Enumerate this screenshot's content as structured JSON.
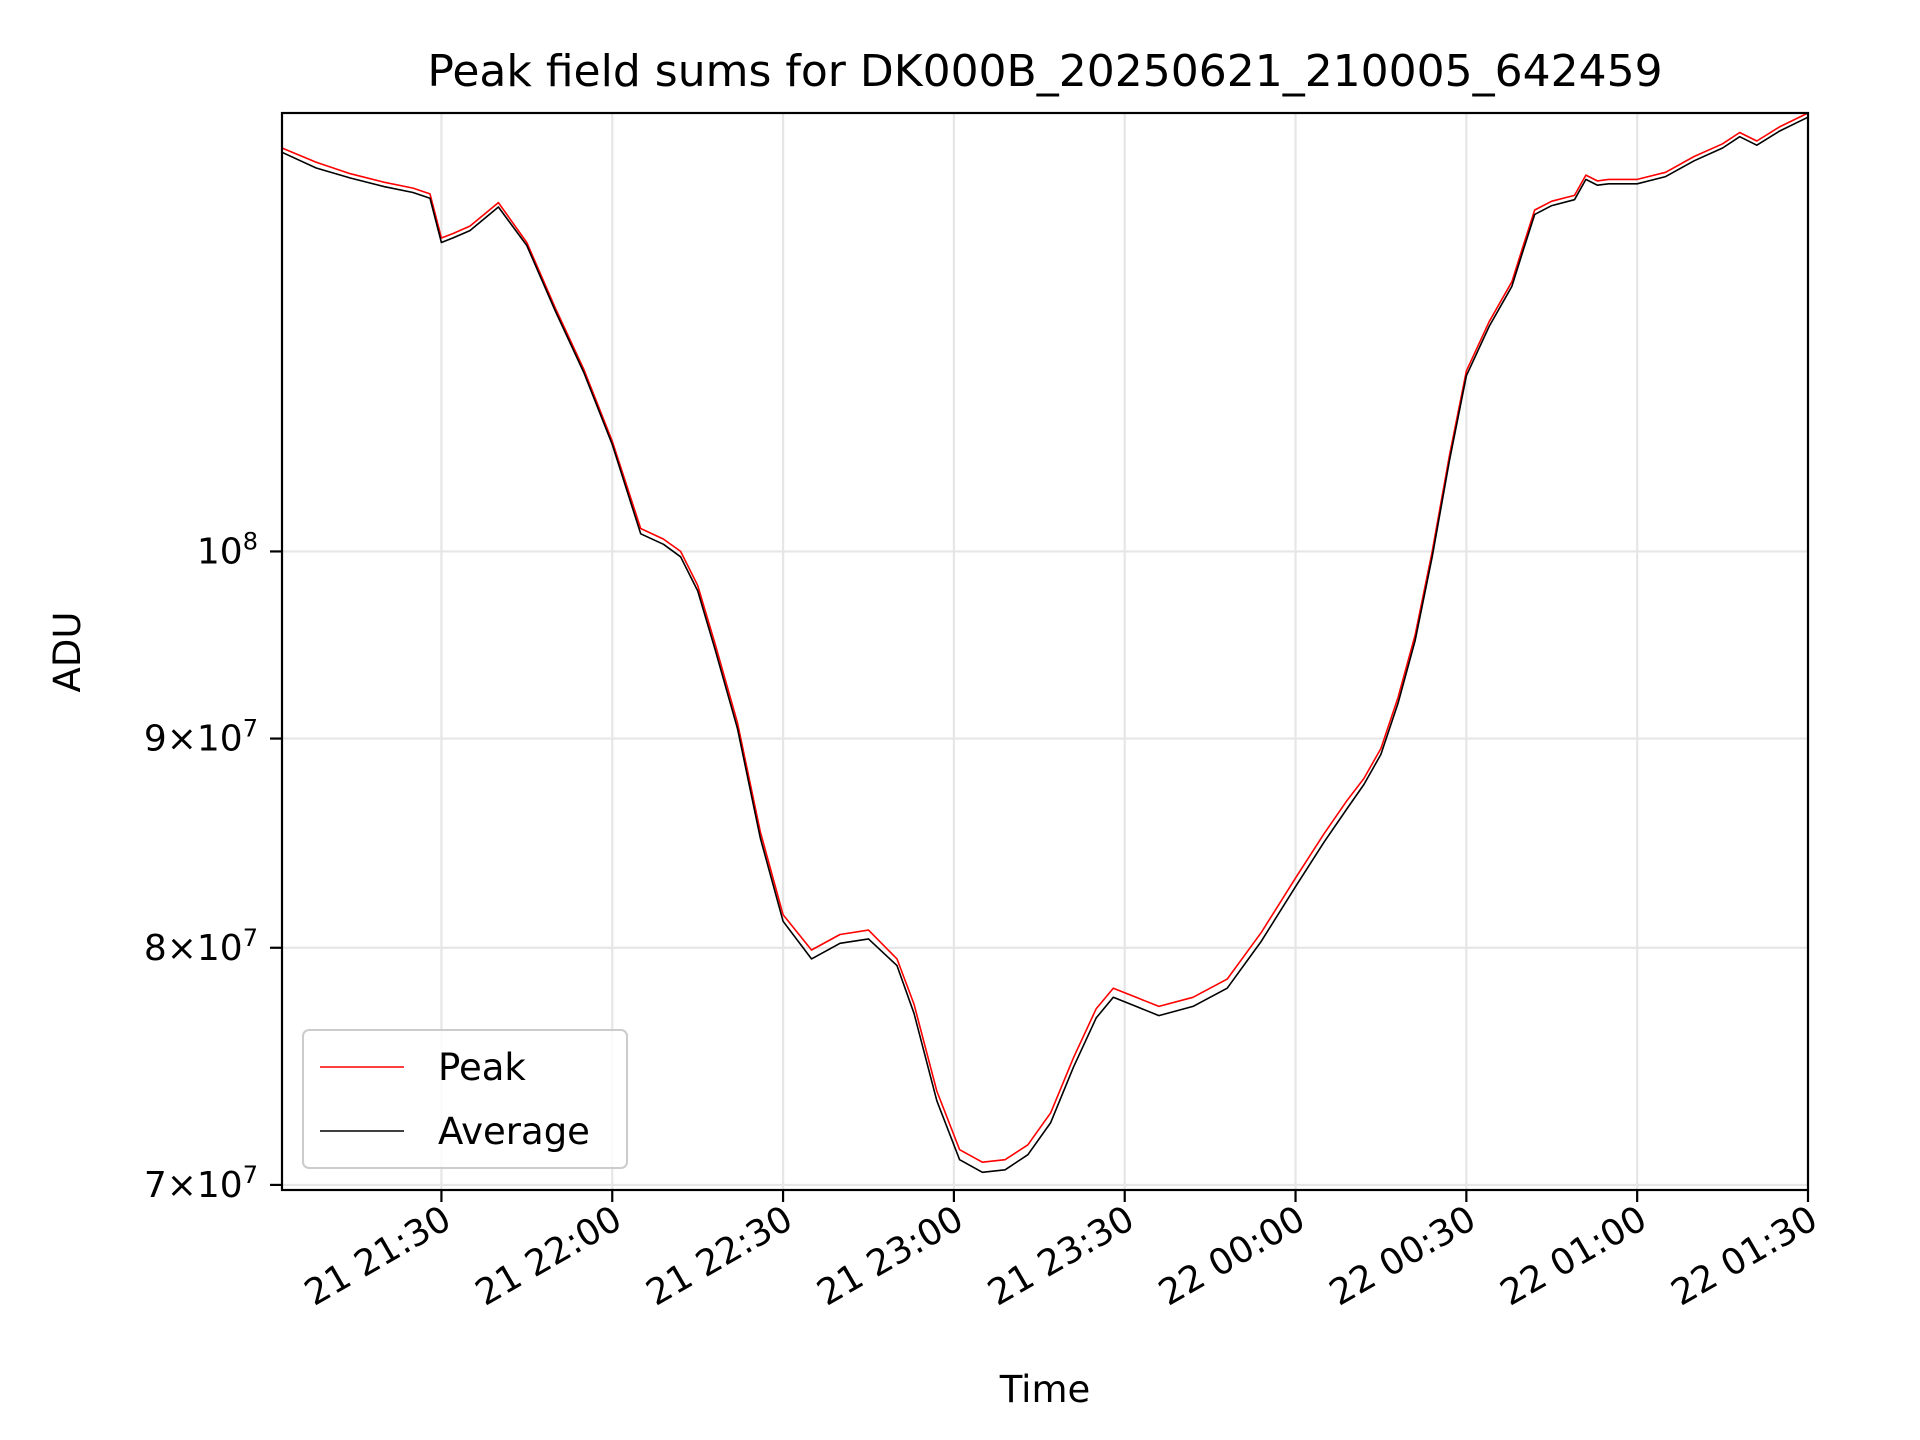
{
  "chart_data": {
    "type": "line",
    "title": "Peak field sums for DK000B_20250621_210005_642459",
    "xlabel": "Time",
    "ylabel": "ADU",
    "yscale": "log",
    "grid": true,
    "legend_position": "lower-left",
    "xlim": [
      "2025-06-21 21:02",
      "2025-06-22 01:30"
    ],
    "ylim": [
      69800000,
      128000000
    ],
    "x_ticks": [
      {
        "value": "2025-06-21 21:30",
        "label": "21 21:30"
      },
      {
        "value": "2025-06-21 22:00",
        "label": "21 22:00"
      },
      {
        "value": "2025-06-21 22:30",
        "label": "21 22:30"
      },
      {
        "value": "2025-06-21 23:00",
        "label": "21 23:00"
      },
      {
        "value": "2025-06-21 23:30",
        "label": "21 23:30"
      },
      {
        "value": "2025-06-22 00:00",
        "label": "22 00:00"
      },
      {
        "value": "2025-06-22 00:30",
        "label": "22 00:30"
      },
      {
        "value": "2025-06-22 01:00",
        "label": "22 01:00"
      },
      {
        "value": "2025-06-22 01:30",
        "label": "22 01:30"
      }
    ],
    "y_ticks": [
      {
        "value": 70000000,
        "mantissa": "7",
        "base": "10",
        "exp": "7"
      },
      {
        "value": 80000000,
        "mantissa": "8",
        "base": "10",
        "exp": "7"
      },
      {
        "value": 90000000,
        "mantissa": "9",
        "base": "10",
        "exp": "7"
      },
      {
        "value": 100000000,
        "mantissa": "",
        "base": "10",
        "exp": "8"
      }
    ],
    "x": [
      "2025-06-21 21:02",
      "2025-06-21 21:08",
      "2025-06-21 21:14",
      "2025-06-21 21:20",
      "2025-06-21 21:25",
      "2025-06-21 21:28",
      "2025-06-21 21:30",
      "2025-06-21 21:32",
      "2025-06-21 21:35",
      "2025-06-21 21:40",
      "2025-06-21 21:45",
      "2025-06-21 21:50",
      "2025-06-21 21:55",
      "2025-06-21 22:00",
      "2025-06-21 22:05",
      "2025-06-21 22:09",
      "2025-06-21 22:12",
      "2025-06-21 22:15",
      "2025-06-21 22:18",
      "2025-06-21 22:22",
      "2025-06-21 22:26",
      "2025-06-21 22:30",
      "2025-06-21 22:35",
      "2025-06-21 22:40",
      "2025-06-21 22:45",
      "2025-06-21 22:50",
      "2025-06-21 22:53",
      "2025-06-21 22:57",
      "2025-06-21 23:01",
      "2025-06-21 23:05",
      "2025-06-21 23:09",
      "2025-06-21 23:13",
      "2025-06-21 23:17",
      "2025-06-21 23:21",
      "2025-06-21 23:25",
      "2025-06-21 23:28",
      "2025-06-21 23:32",
      "2025-06-21 23:36",
      "2025-06-21 23:42",
      "2025-06-21 23:48",
      "2025-06-21 23:54",
      "2025-06-22 00:00",
      "2025-06-22 00:05",
      "2025-06-22 00:09",
      "2025-06-22 00:12",
      "2025-06-22 00:15",
      "2025-06-22 00:18",
      "2025-06-22 00:21",
      "2025-06-22 00:24",
      "2025-06-22 00:27",
      "2025-06-22 00:30",
      "2025-06-22 00:34",
      "2025-06-22 00:38",
      "2025-06-22 00:40",
      "2025-06-22 00:42",
      "2025-06-22 00:45",
      "2025-06-22 00:49",
      "2025-06-22 00:51",
      "2025-06-22 00:53",
      "2025-06-22 00:55",
      "2025-06-22 01:00",
      "2025-06-22 01:05",
      "2025-06-22 01:10",
      "2025-06-22 01:15",
      "2025-06-22 01:18",
      "2025-06-22 01:21",
      "2025-06-22 01:25",
      "2025-06-22 01:30"
    ],
    "series": [
      {
        "name": "Peak",
        "color": "#ff0000",
        "values": [
          125500000,
          124500000,
          123700000,
          123100000,
          122700000,
          122300000,
          119300000,
          119600000,
          120100000,
          121700000,
          119000000,
          114700000,
          110800000,
          106400000,
          101300000,
          100700000,
          100000000,
          98100000,
          95000000,
          90800000,
          85400000,
          81500000,
          79900000,
          80600000,
          80800000,
          79500000,
          77500000,
          73800000,
          71400000,
          70900000,
          71000000,
          71600000,
          72900000,
          75200000,
          77300000,
          78200000,
          77800000,
          77400000,
          77800000,
          78600000,
          80700000,
          83200000,
          85300000,
          86900000,
          88000000,
          89500000,
          92100000,
          95400000,
          100000000,
          105500000,
          110700000,
          113800000,
          116400000,
          118800000,
          121200000,
          121800000,
          122200000,
          123600000,
          123200000,
          123300000,
          123300000,
          123800000,
          124900000,
          125800000,
          126600000,
          126000000,
          127000000,
          128000000
        ]
      },
      {
        "name": "Average",
        "color": "#000000",
        "values": [
          125200000,
          124100000,
          123400000,
          122800000,
          122400000,
          122000000,
          119000000,
          119300000,
          119800000,
          121400000,
          118800000,
          114500000,
          110600000,
          106200000,
          101000000,
          100400000,
          99700000,
          97800000,
          94700000,
          90500000,
          85100000,
          81200000,
          79500000,
          80200000,
          80400000,
          79200000,
          77100000,
          73400000,
          71000000,
          70500000,
          70600000,
          71200000,
          72500000,
          74800000,
          76900000,
          77800000,
          77400000,
          77000000,
          77400000,
          78200000,
          80300000,
          82800000,
          84900000,
          86500000,
          87700000,
          89200000,
          91800000,
          95100000,
          99700000,
          105200000,
          110400000,
          113500000,
          116100000,
          118500000,
          120900000,
          121500000,
          121900000,
          123300000,
          122900000,
          123000000,
          123000000,
          123500000,
          124600000,
          125500000,
          126300000,
          125700000,
          126700000,
          127700000
        ]
      }
    ]
  }
}
